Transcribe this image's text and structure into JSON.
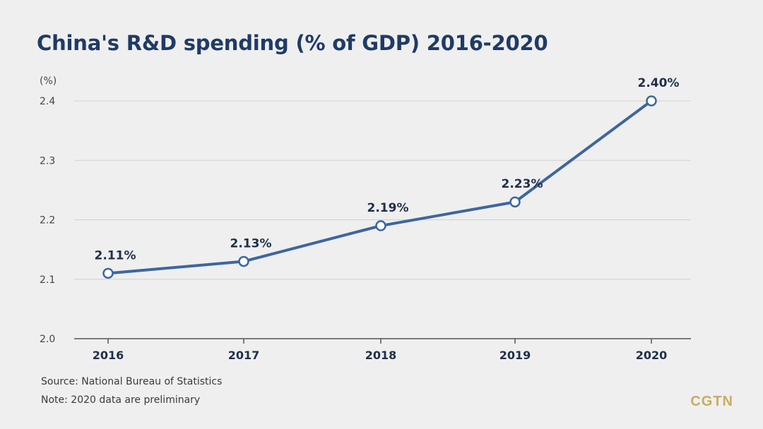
{
  "chart_data": {
    "type": "line",
    "title": "China's R&D spending (% of GDP) 2016-2020",
    "ylabel": "(%)",
    "xlabel": "",
    "categories": [
      "2016",
      "2017",
      "2018",
      "2019",
      "2020"
    ],
    "values": [
      2.11,
      2.13,
      2.19,
      2.23,
      2.4
    ],
    "data_labels": [
      "2.11%",
      "2.13%",
      "2.19%",
      "2.23%",
      "2.40%"
    ],
    "ylim": [
      2.0,
      2.4
    ],
    "yticks": [
      "2.0",
      "2.1",
      "2.2",
      "2.3",
      "2.4"
    ],
    "grid": true,
    "line_color": "#3d66a0",
    "marker_fill": "#ffffff"
  },
  "footer": {
    "source": "Source: National Bureau of Statistics",
    "note": "Note: 2020 data are preliminary"
  },
  "brand": {
    "logo": "CGTN",
    "logo_color": "#c8ad62"
  }
}
